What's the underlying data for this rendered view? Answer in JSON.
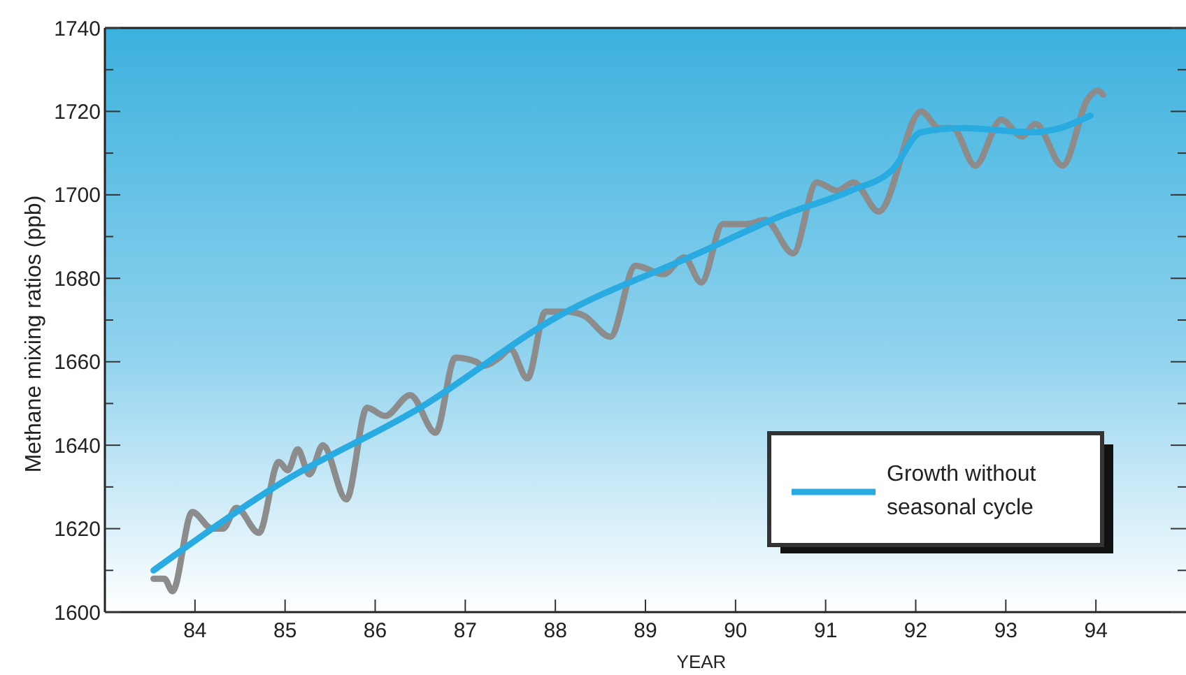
{
  "chart_data": {
    "type": "line",
    "xlabel": "YEAR",
    "ylabel": "Methane mixing ratios (ppb)",
    "xlim": [
      83,
      95
    ],
    "xticks": [
      84,
      85,
      86,
      87,
      88,
      89,
      90,
      91,
      92,
      93,
      94
    ],
    "ylim": [
      1600,
      1740
    ],
    "yticks": [
      1600,
      {
        "value": 1610,
        "label": null
      },
      1620,
      {
        "value": 1630,
        "label": null
      },
      1640,
      {
        "value": 1650,
        "label": null
      },
      1660,
      {
        "value": 1670,
        "label": null
      },
      1680,
      {
        "value": 1690,
        "label": null
      },
      1700,
      {
        "value": 1710,
        "label": null
      },
      1720,
      {
        "value": 1730,
        "label": null
      },
      1740
    ],
    "legend": "bottom right",
    "grid": false,
    "marker": "none",
    "line_style": "solid",
    "series": [
      {
        "color": "#8c8c8c",
        "x": [
          83.54,
          83.66,
          83.75,
          83.97,
          84.19,
          84.31,
          84.46,
          84.71,
          84.93,
          85.03,
          85.14,
          85.27,
          85.42,
          85.68,
          85.91,
          86.11,
          86.39,
          86.67,
          86.89,
          87.12,
          87.19,
          87.38,
          87.5,
          87.69,
          87.89,
          88.12,
          88.32,
          88.61,
          88.89,
          89.2,
          89.43,
          89.62,
          89.86,
          90.12,
          90.33,
          90.64,
          90.9,
          91.13,
          91.31,
          91.59,
          92.06,
          92.26,
          92.41,
          92.66,
          92.95,
          93.18,
          93.33,
          93.63,
          93.91,
          94.02,
          94.08
        ],
        "values": [
          1608,
          1608,
          1605,
          1624,
          1620,
          1620,
          1625,
          1619,
          1636,
          1634,
          1639,
          1633,
          1640,
          1627,
          1649,
          1647,
          1652,
          1643,
          1661,
          1660,
          1659,
          1661,
          1663,
          1656,
          1672,
          1672,
          1671,
          1666,
          1683,
          1681,
          1685,
          1679,
          1693,
          1693,
          1694,
          1686,
          1703,
          1701,
          1703,
          1696,
          1720,
          1716,
          1716,
          1707,
          1718,
          1714,
          1717,
          1707,
          1723,
          1725,
          1724
        ]
      },
      {
        "name": "Growth without seasonal cycle",
        "color": "#29abe2",
        "x": [
          83.54,
          84.96,
          86.5,
          88.04,
          89.59,
          90.51,
          91.28,
          91.74,
          92.06,
          92.52,
          93.29,
          93.6,
          93.94
        ],
        "values": [
          1610,
          1631,
          1649,
          1671,
          1686,
          1695,
          1701,
          1706,
          1715,
          1716,
          1715,
          1716,
          1719
        ]
      }
    ]
  }
}
